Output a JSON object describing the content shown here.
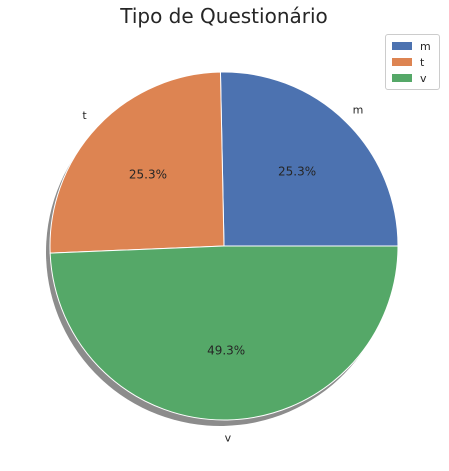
{
  "chart_data": {
    "type": "pie",
    "title": "Tipo de Questionário",
    "categories": [
      "m",
      "t",
      "v"
    ],
    "values": [
      25.3,
      25.3,
      49.3
    ],
    "value_labels": [
      "25.3%",
      "25.3%",
      "49.3%"
    ],
    "colors": [
      "#4c72b0",
      "#dd8452",
      "#55a868"
    ],
    "legend": {
      "placement": "upper-right",
      "entries": [
        "m",
        "t",
        "v"
      ]
    },
    "shadow": true,
    "start_angle_deg": 0,
    "direction": "counterclockwise"
  }
}
